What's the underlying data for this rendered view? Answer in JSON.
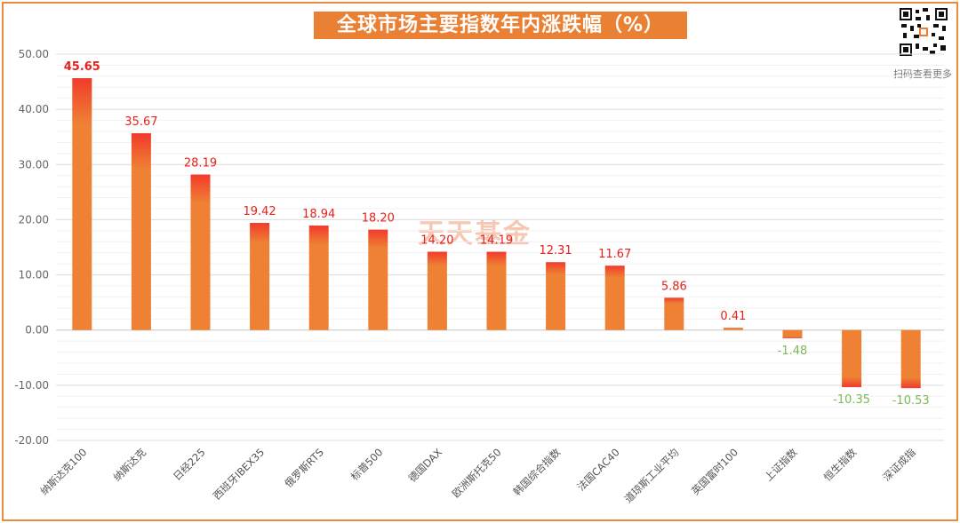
{
  "header": {
    "title": "全球市场主要指数年内涨跌幅（%）",
    "qr_caption": "扫码查看更多",
    "watermark": "天天基金"
  },
  "colors": {
    "bar_main": "#ee8134",
    "bar_tip": "#f23a2b",
    "label_positive": "#e8211c",
    "label_negative": "#7cba55",
    "border": "#ea8a3a"
  },
  "chart_data": {
    "type": "bar",
    "title": "全球市场主要指数年内涨跌幅（%）",
    "xlabel": "",
    "ylabel": "",
    "ylim": [
      -20,
      50
    ],
    "yticks": [
      "50.00",
      "40.00",
      "30.00",
      "20.00",
      "10.00",
      "0.00",
      "-10.00",
      "-20.00"
    ],
    "categories": [
      "纳斯达克100",
      "纳斯达克",
      "日经225",
      "西班牙IBEX35",
      "俄罗斯RTS",
      "标普500",
      "德国DAX",
      "欧洲斯托克50",
      "韩国综合指数",
      "法国CAC40",
      "道琼斯工业平均",
      "英国富时100",
      "上证指数",
      "恒生指数",
      "深证成指"
    ],
    "values": [
      45.65,
      35.67,
      28.19,
      19.42,
      18.94,
      18.2,
      14.2,
      14.19,
      12.31,
      11.67,
      5.86,
      0.41,
      -1.48,
      -10.35,
      -10.53
    ],
    "labels": [
      "45.65",
      "35.67",
      "28.19",
      "19.42",
      "18.94",
      "18.20",
      "14.20",
      "14.19",
      "12.31",
      "11.67",
      "5.86",
      "0.41",
      "-1.48",
      "-10.35",
      "-10.53"
    ]
  }
}
